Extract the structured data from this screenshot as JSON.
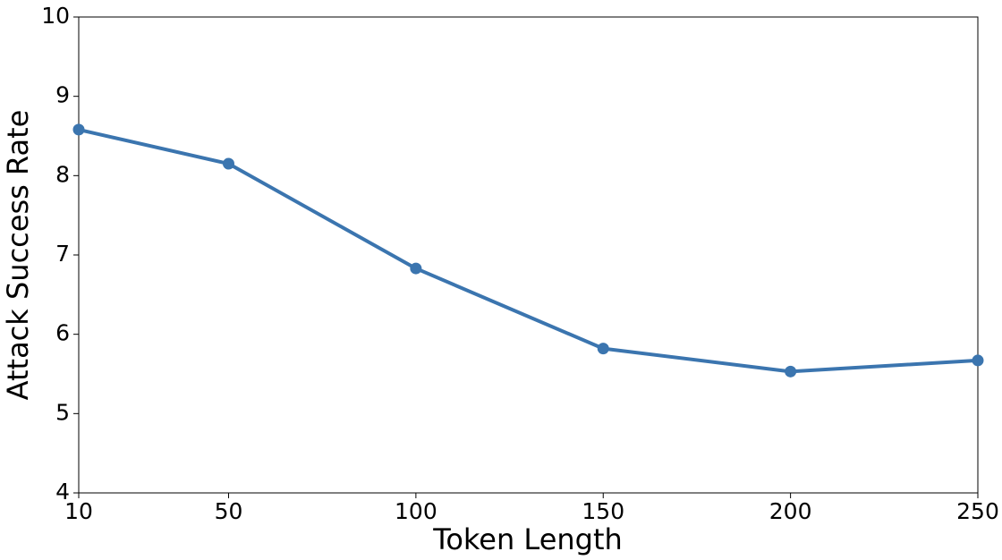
{
  "chart_data": {
    "type": "line",
    "x_label": "Token Length",
    "y_label": "Attack Success Rate",
    "x": [
      10,
      50,
      100,
      150,
      200,
      250
    ],
    "series": [
      {
        "color": "#3b75af",
        "values": [
          8.58,
          8.15,
          6.83,
          5.82,
          5.53,
          5.67
        ]
      }
    ],
    "xlim": [
      10,
      250
    ],
    "xticks": [
      10,
      50,
      100,
      150,
      200,
      250
    ],
    "ylim": [
      4,
      10
    ],
    "yticks": [
      4,
      5,
      6,
      7,
      8,
      9,
      10
    ],
    "grid": false,
    "markers": true
  }
}
